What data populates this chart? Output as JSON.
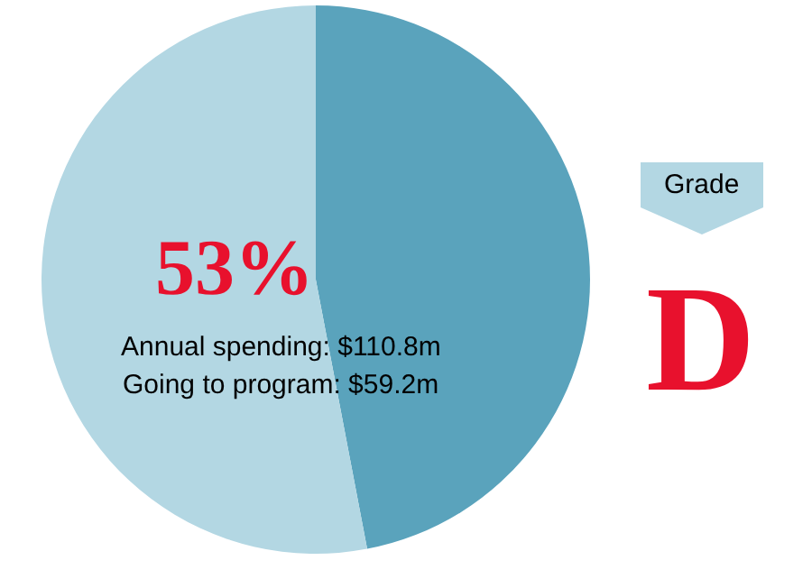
{
  "chart_data": {
    "type": "pie",
    "categories": [
      null,
      null
    ],
    "values": [
      47,
      53
    ],
    "colors": [
      "#5aa3bc",
      "#b3d7e3"
    ],
    "legend": false,
    "annotations": [
      "53%",
      "Annual spending: $110.8m",
      "Going to program: $59.2m",
      "Grade",
      "D"
    ]
  }
}
